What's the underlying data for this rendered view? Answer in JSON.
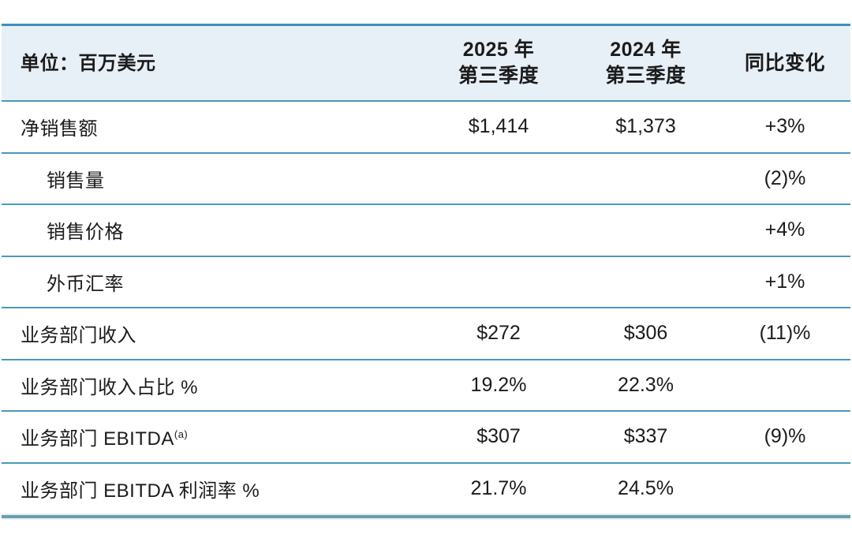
{
  "colors": {
    "header_background": "#e7eff7",
    "row_separator": "#4a98bb",
    "table_top_border": "#3f92ba",
    "table_bottom_border": "#6f9aad",
    "text": "#1b1b1b"
  },
  "table": {
    "header": {
      "unit_label": "单位：百万美元",
      "col_q3_2025_line1": "2025 年",
      "col_q3_2025_line2": "第三季度",
      "col_q3_2024_line1": "2024 年",
      "col_q3_2024_line2": "第三季度",
      "col_yoy": "同比变化"
    },
    "rows": [
      {
        "label": "净销售额",
        "q3_2025": "$1,414",
        "q3_2024": "$1,373",
        "yoy": "+3%"
      },
      {
        "label": "销售量",
        "q3_2025": "",
        "q3_2024": "",
        "yoy": "(2)%"
      },
      {
        "label": "销售价格",
        "q3_2025": "",
        "q3_2024": "",
        "yoy": "+4%"
      },
      {
        "label": "外币汇率",
        "q3_2025": "",
        "q3_2024": "",
        "yoy": "+1%"
      },
      {
        "label": "业务部门收入",
        "q3_2025": "$272",
        "q3_2024": "$306",
        "yoy": "(11)%"
      },
      {
        "label": "业务部门收入占比 %",
        "q3_2025": "19.2%",
        "q3_2024": "22.3%",
        "yoy": ""
      },
      {
        "label": "业务部门 EBITDA",
        "label_sup": "(a)",
        "q3_2025": "$307",
        "q3_2024": "$337",
        "yoy": "(9)%"
      },
      {
        "label": "业务部门 EBITDA 利润率 %",
        "q3_2025": "21.7%",
        "q3_2024": "24.5%",
        "yoy": ""
      }
    ]
  }
}
